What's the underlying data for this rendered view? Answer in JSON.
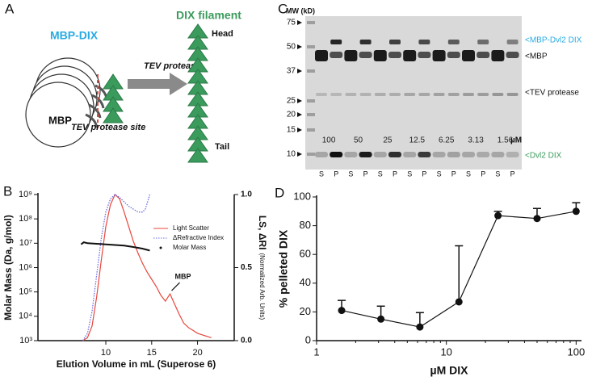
{
  "panel_a": {
    "label": "A",
    "mbp_dix": "MBP-DIX",
    "dix_filament": "DIX filament",
    "mbp": "MBP",
    "tev_protease": "TEV protease",
    "tev_site": "TEV protease site",
    "head": "Head",
    "tail": "Tail"
  },
  "panel_c": {
    "label": "C",
    "mw_title": "MW (kD)",
    "mw_markers": [
      75,
      50,
      37,
      25,
      20,
      15,
      10
    ],
    "concentrations": [
      "100",
      "50",
      "25",
      "12.5",
      "6.25",
      "3.13",
      "1.56"
    ],
    "conc_unit": "µM",
    "lanes": [
      "S",
      "P",
      "S",
      "P",
      "S",
      "P",
      "S",
      "P",
      "S",
      "P",
      "S",
      "P",
      "S",
      "P"
    ],
    "band_labels": [
      "<MBP-Dvl2 DIX",
      "<MBP",
      "<TEV protease",
      "<Dvl2 DIX"
    ],
    "band_label_colors": [
      "#29abe2",
      "#111111",
      "#111111",
      "#3a9b5c"
    ]
  },
  "chart_data": [
    {
      "panel_label": "B",
      "type": "line",
      "xlabel": "Elution Volume in mL (Superose 6)",
      "ylabel": "Molar Mass (Da, g/mol)",
      "y2label": "LS, ΔRI",
      "y2label_note": "(Normalized Arb. Units)",
      "annotation": "MBP",
      "xlim": [
        2.6,
        24
      ],
      "xticks": [
        10,
        15,
        20
      ],
      "yscale": "log",
      "ylim": [
        1000,
        1000000000
      ],
      "yticks": [
        {
          "value": 1000,
          "label": "10³"
        },
        {
          "value": 10000,
          "label": "10⁴"
        },
        {
          "value": 100000,
          "label": "10⁵"
        },
        {
          "value": 1000000,
          "label": "10⁶"
        },
        {
          "value": 10000000,
          "label": "10⁷"
        },
        {
          "value": 100000000,
          "label": "10⁸"
        },
        {
          "value": 1000000000,
          "label": "10⁹"
        }
      ],
      "y2lim": [
        0,
        1
      ],
      "y2ticks": [
        {
          "value": 0,
          "label": "0.0"
        },
        {
          "value": 0.5,
          "label": "0.5"
        },
        {
          "value": 1,
          "label": "1.0"
        }
      ],
      "legend": "upper right",
      "series": [
        {
          "name": "Light Scatter",
          "color": "#e8463c",
          "style": "solid",
          "axis": "y2",
          "x": [
            7.5,
            8,
            8.5,
            9,
            9.5,
            10,
            10.5,
            11,
            11.5,
            12,
            12.5,
            13,
            13.5,
            14,
            14.5,
            15,
            15.5,
            16,
            16.5,
            17,
            17.5,
            18,
            18.5,
            19,
            19.5,
            20,
            20.5,
            21,
            21.5
          ],
          "values": [
            0,
            0.02,
            0.1,
            0.3,
            0.55,
            0.78,
            0.93,
            1.0,
            0.97,
            0.88,
            0.78,
            0.68,
            0.6,
            0.53,
            0.47,
            0.42,
            0.37,
            0.31,
            0.27,
            0.32,
            0.25,
            0.18,
            0.12,
            0.09,
            0.07,
            0.05,
            0.04,
            0.03,
            0.02
          ]
        },
        {
          "name": "ΔRefractive Index",
          "color": "#6a6ee0",
          "style": "dotted",
          "axis": "y2",
          "x": [
            7.5,
            8,
            8.5,
            9,
            9.5,
            10,
            10.5,
            11,
            11.5,
            12,
            12.5,
            13,
            13.5,
            14,
            14.3,
            14.6,
            14.8
          ],
          "values": [
            0,
            0.05,
            0.2,
            0.45,
            0.7,
            0.88,
            0.97,
            1.0,
            0.98,
            0.95,
            0.92,
            0.9,
            0.88,
            0.88,
            0.9,
            0.96,
            1.0
          ]
        },
        {
          "name": "Molar Mass",
          "color": "#111111",
          "style": "thick",
          "x": [
            7.3,
            7.6,
            8,
            9,
            10,
            11,
            12,
            13,
            14,
            14.8
          ],
          "values": [
            9000000,
            11000000,
            10000000,
            9500000,
            9000000,
            8500000,
            8000000,
            7000000,
            6000000,
            5000000
          ]
        }
      ]
    },
    {
      "panel_label": "D",
      "type": "errorbar",
      "xlabel": "µM DIX",
      "ylabel": "% pelleted DIX",
      "xscale": "log",
      "xlim": [
        1,
        110
      ],
      "xticks": [
        1,
        10,
        100
      ],
      "ylim": [
        0,
        100
      ],
      "yticks": [
        0,
        20,
        40,
        60,
        80,
        100
      ],
      "series": [
        {
          "color": "#111111",
          "x": [
            1.56,
            3.13,
            6.25,
            12.5,
            25,
            50,
            100
          ],
          "values": [
            21,
            15,
            9.5,
            27,
            87,
            85,
            90
          ],
          "errors": [
            7,
            9,
            10,
            39,
            3,
            7,
            6
          ]
        }
      ]
    }
  ]
}
